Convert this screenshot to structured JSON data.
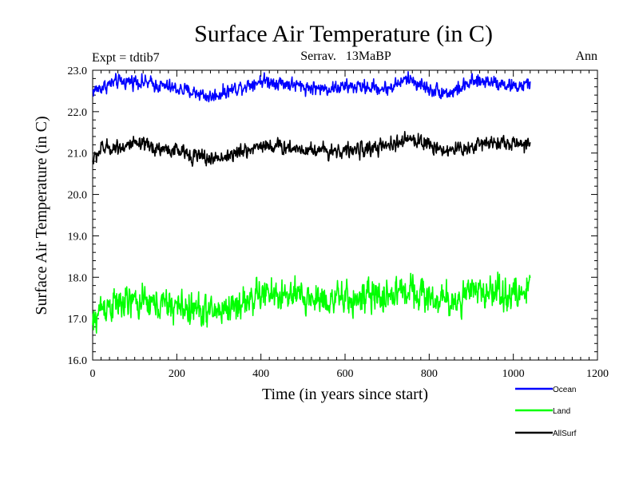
{
  "chart_data": {
    "type": "line",
    "title": "Surface Air Temperature (in C)",
    "subtitle_left": "Expt = tdtib7",
    "subtitle_center": "Serrav.   13MaBP",
    "subtitle_right": "Ann",
    "xlabel": "Time (in years since start)",
    "ylabel": "Surface Air Temperature (in C)",
    "xlim": [
      0,
      1200
    ],
    "ylim": [
      16.0,
      23.0
    ],
    "x_ticks": [
      0,
      200,
      400,
      600,
      800,
      1000,
      1200
    ],
    "x_tick_labels": [
      "0",
      "200",
      "400",
      "600",
      "800",
      "1000",
      "1200"
    ],
    "y_ticks": [
      16.0,
      17.0,
      18.0,
      19.0,
      20.0,
      21.0,
      22.0,
      23.0
    ],
    "y_tick_labels": [
      "16.0",
      "17.0",
      "18.0",
      "19.0",
      "20.0",
      "21.0",
      "22.0",
      "23.0"
    ],
    "x_range_years": [
      0,
      1040
    ],
    "series": [
      {
        "name": "Ocean",
        "color": "#0000ff",
        "noise": 0.12,
        "x": [
          0,
          50,
          100,
          150,
          200,
          250,
          280,
          320,
          400,
          450,
          500,
          550,
          600,
          650,
          700,
          750,
          800,
          850,
          900,
          950,
          1000,
          1040
        ],
        "values": [
          22.5,
          22.7,
          22.75,
          22.65,
          22.55,
          22.45,
          22.35,
          22.5,
          22.75,
          22.7,
          22.6,
          22.55,
          22.6,
          22.6,
          22.55,
          22.8,
          22.55,
          22.45,
          22.7,
          22.75,
          22.6,
          22.65
        ]
      },
      {
        "name": "Land",
        "color": "#00ff00",
        "noise": 0.28,
        "x": [
          0,
          20,
          100,
          200,
          280,
          350,
          400,
          500,
          600,
          700,
          760,
          800,
          850,
          900,
          950,
          1000,
          1040
        ],
        "values": [
          16.8,
          17.3,
          17.4,
          17.3,
          17.15,
          17.35,
          17.6,
          17.5,
          17.45,
          17.55,
          17.75,
          17.5,
          17.4,
          17.6,
          17.7,
          17.55,
          17.7
        ]
      },
      {
        "name": "AllSurf",
        "color": "#000000",
        "noise": 0.13,
        "x": [
          0,
          20,
          100,
          200,
          280,
          350,
          400,
          500,
          600,
          700,
          760,
          800,
          850,
          900,
          950,
          1000,
          1040
        ],
        "values": [
          20.8,
          21.1,
          21.2,
          21.05,
          20.85,
          21.0,
          21.2,
          21.1,
          21.05,
          21.15,
          21.35,
          21.2,
          21.05,
          21.15,
          21.3,
          21.2,
          21.25
        ]
      }
    ],
    "legend_position": "bottom-right"
  }
}
